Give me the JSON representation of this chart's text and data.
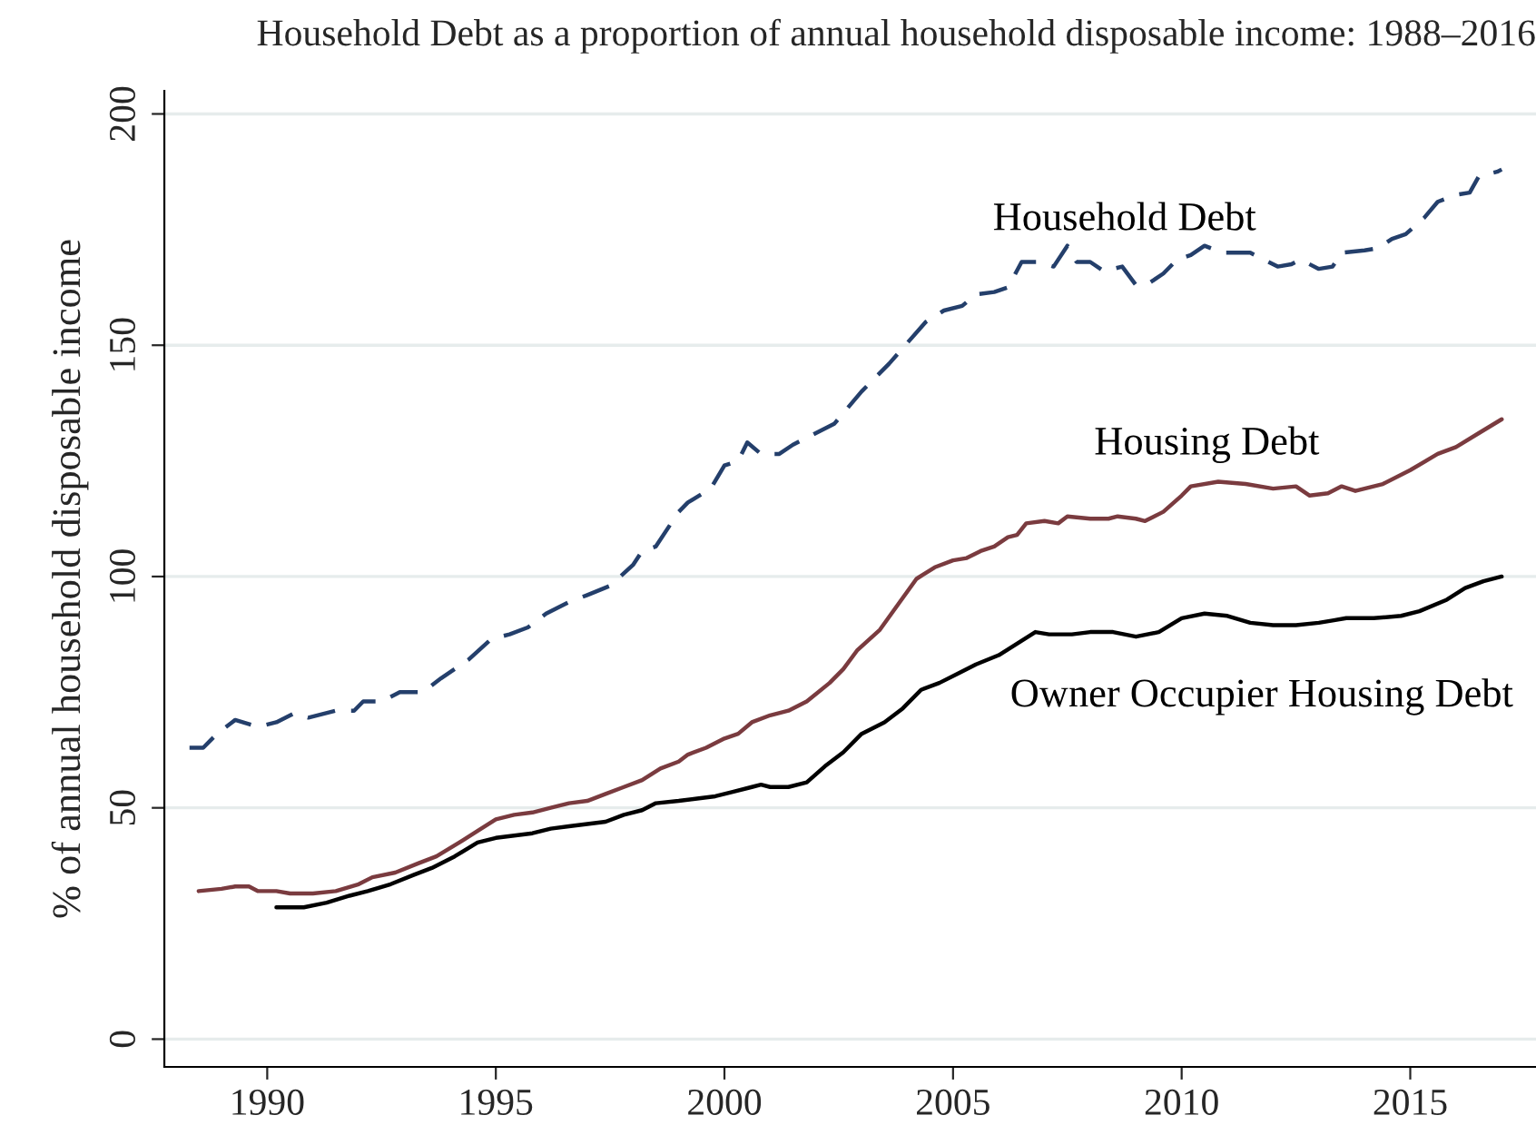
{
  "chart_data": {
    "type": "line",
    "title": "Household Debt as a proportion of annual household disposable income: 1988–2016",
    "ylabel": "% of annual household disposable income",
    "xlim": [
      1987.75,
      2017.75
    ],
    "xticks": [
      1990,
      1995,
      2000,
      2005,
      2010,
      2015
    ],
    "ylim": [
      -6,
      205
    ],
    "yticks": [
      0,
      50,
      100,
      150,
      200
    ],
    "grid": "y",
    "legend": false,
    "series": [
      {
        "name": "Household Debt",
        "color": "#243f6b",
        "line_style": "dashed",
        "x": [
          1988.3,
          1988.6,
          1988.9,
          1989.3,
          1989.8,
          1990.2,
          1990.6,
          1990.9,
          1991.5,
          1991.9,
          1992.1,
          1992.5,
          1992.9,
          1993.4,
          1993.8,
          1994.4,
          1994.9,
          1995.3,
          1995.7,
          1996.1,
          1996.6,
          1997.0,
          1997.5,
          1998.0,
          1998.2,
          1998.5,
          1999.0,
          1999.2,
          1999.7,
          2000.0,
          2000.3,
          2000.5,
          2000.8,
          2001.2,
          2001.5,
          2002.0,
          2002.4,
          2003.0,
          2003.6,
          2004.0,
          2004.4,
          2004.8,
          2005.2,
          2005.5,
          2005.9,
          2006.2,
          2006.5,
          2006.9,
          2007.2,
          2007.5,
          2007.7,
          2008.0,
          2008.3,
          2008.7,
          2009.0,
          2009.3,
          2009.6,
          2009.9,
          2010.2,
          2010.5,
          2010.9,
          2011.5,
          2011.9,
          2012.1,
          2012.4,
          2012.6,
          2013.0,
          2013.3,
          2013.5,
          2014.0,
          2014.3,
          2014.6,
          2014.9,
          2015.3,
          2015.6,
          2016.0,
          2016.3,
          2016.5,
          2016.9,
          2017.0
        ],
        "values": [
          63,
          63,
          66,
          69,
          67.5,
          68.5,
          70.5,
          69.5,
          71,
          71,
          73,
          73,
          75,
          75,
          78,
          82,
          86.5,
          87.5,
          89,
          92,
          94.5,
          96,
          98,
          102.5,
          105.5,
          106.5,
          114,
          116,
          119,
          124,
          125,
          129,
          126.5,
          126.5,
          128.5,
          131,
          133,
          140,
          146,
          150.5,
          155,
          157.5,
          158.5,
          161,
          161.5,
          162.5,
          168,
          168,
          167,
          171.5,
          168,
          168,
          166,
          167,
          163,
          163.5,
          165.5,
          168.5,
          169.5,
          171.5,
          170,
          170,
          168,
          167,
          167.5,
          168.5,
          166.5,
          167,
          170,
          170.5,
          171,
          173,
          174,
          177.5,
          181,
          182.5,
          183,
          186.5,
          187.5,
          188
        ]
      },
      {
        "name": "Housing Debt",
        "color": "#7a3b3f",
        "line_style": "solid",
        "x": [
          1988.5,
          1989.0,
          1989.3,
          1989.6,
          1989.8,
          1990.2,
          1990.5,
          1991.0,
          1991.5,
          1992.0,
          1992.3,
          1992.8,
          1993.3,
          1993.7,
          1994.2,
          1994.6,
          1995.0,
          1995.4,
          1995.8,
          1996.2,
          1996.6,
          1997.0,
          1997.4,
          1997.8,
          1998.2,
          1998.6,
          1999.0,
          1999.2,
          1999.6,
          2000.0,
          2000.3,
          2000.6,
          2001.0,
          2001.4,
          2001.8,
          2002.3,
          2002.6,
          2002.9,
          2003.4,
          2003.8,
          2004.2,
          2004.6,
          2005.0,
          2005.3,
          2005.6,
          2005.9,
          2006.2,
          2006.4,
          2006.6,
          2007.0,
          2007.3,
          2007.5,
          2008.0,
          2008.4,
          2008.6,
          2009.0,
          2009.2,
          2009.6,
          2010.0,
          2010.2,
          2010.8,
          2011.4,
          2012.0,
          2012.5,
          2012.8,
          2013.2,
          2013.5,
          2013.8,
          2014.4,
          2015.0,
          2015.6,
          2016.0,
          2016.5,
          2017.0
        ],
        "values": [
          32,
          32.5,
          33,
          33,
          32,
          32,
          31.5,
          31.5,
          32,
          33.5,
          35,
          36,
          38,
          39.5,
          42.5,
          45,
          47.5,
          48.5,
          49,
          50,
          51,
          51.5,
          53,
          54.5,
          56,
          58.5,
          60,
          61.5,
          63,
          65,
          66,
          68.5,
          70,
          71,
          73,
          77,
          80,
          84,
          88.5,
          94,
          99.5,
          102,
          103.5,
          104,
          105.5,
          106.5,
          108.5,
          109,
          111.5,
          112,
          111.5,
          113,
          112.5,
          112.5,
          113,
          112.5,
          112,
          114,
          117.5,
          119.5,
          120.5,
          120,
          119,
          119.5,
          117.5,
          118,
          119.5,
          118.5,
          120,
          123,
          126.5,
          128,
          131,
          134
        ]
      },
      {
        "name": "Owner Occupier Housing Debt",
        "color": "#000000",
        "line_style": "solid",
        "x": [
          1990.2,
          1990.5,
          1990.8,
          1991.3,
          1991.8,
          1992.2,
          1992.7,
          1993.2,
          1993.6,
          1994.1,
          1994.6,
          1995.0,
          1995.4,
          1995.8,
          1996.2,
          1996.6,
          1997.0,
          1997.4,
          1997.8,
          1998.2,
          1998.5,
          1999.0,
          1999.4,
          1999.8,
          2000.2,
          2000.6,
          2000.8,
          2001.0,
          2001.4,
          2001.8,
          2002.2,
          2002.6,
          2003.0,
          2003.5,
          2003.9,
          2004.3,
          2004.7,
          2005.1,
          2005.5,
          2006.0,
          2006.4,
          2006.8,
          2007.1,
          2007.6,
          2008.0,
          2008.5,
          2009.0,
          2009.5,
          2010.0,
          2010.5,
          2011.0,
          2011.5,
          2012.0,
          2012.5,
          2013.0,
          2013.3,
          2013.6,
          2014.2,
          2014.8,
          2015.2,
          2015.8,
          2016.2,
          2016.6,
          2017.0
        ],
        "values": [
          28.5,
          28.5,
          28.5,
          29.5,
          31,
          32,
          33.5,
          35.5,
          37,
          39.5,
          42.5,
          43.5,
          44,
          44.5,
          45.5,
          46,
          46.5,
          47,
          48.5,
          49.5,
          51,
          51.5,
          52,
          52.5,
          53.5,
          54.5,
          55,
          54.5,
          54.5,
          55.5,
          59,
          62,
          66,
          68.5,
          71.5,
          75.5,
          77,
          79,
          81,
          83,
          85.5,
          88,
          87.5,
          87.5,
          88,
          88,
          87,
          88,
          91,
          92,
          91.5,
          90,
          89.5,
          89.5,
          90,
          90.5,
          91,
          91,
          91.5,
          92.5,
          95,
          97.5,
          99,
          100
        ]
      }
    ]
  }
}
